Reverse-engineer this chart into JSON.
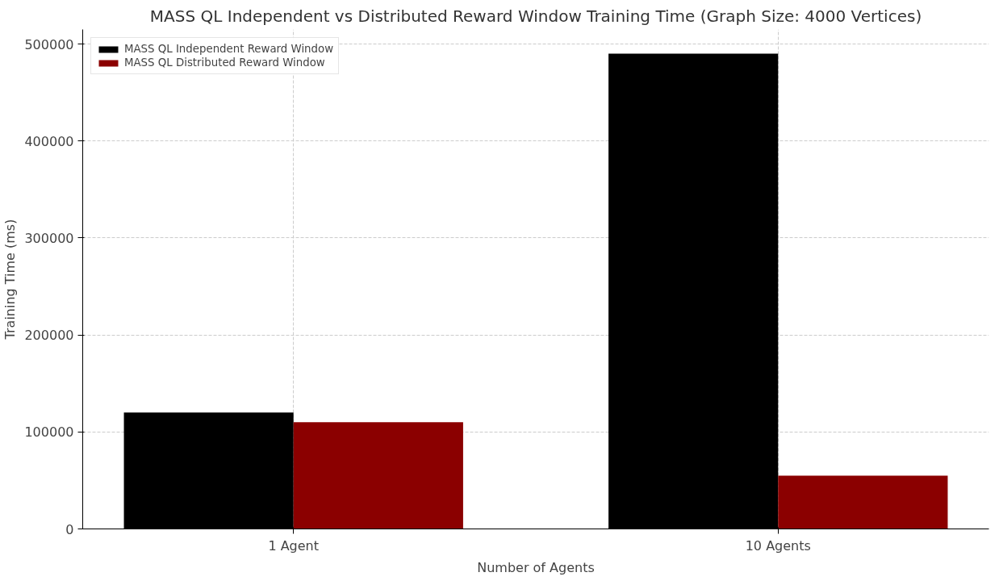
{
  "chart_data": {
    "type": "bar",
    "title": "MASS QL Independent vs Distributed Reward Window Training Time (Graph Size: 4000 Vertices)",
    "xlabel": "Number of Agents",
    "ylabel": "Training Time (ms)",
    "categories": [
      "1 Agent",
      "10 Agents"
    ],
    "series": [
      {
        "name": "MASS QL Independent Reward Window",
        "color": "#000000",
        "values": [
          120000,
          490000
        ]
      },
      {
        "name": "MASS QL Distributed Reward Window",
        "color": "#8b0000",
        "values": [
          110000,
          55000
        ]
      }
    ],
    "ylim": [
      0,
      515000
    ],
    "yticks": [
      0,
      100000,
      200000,
      300000,
      400000,
      500000
    ],
    "grid": true,
    "legend": "top left"
  }
}
